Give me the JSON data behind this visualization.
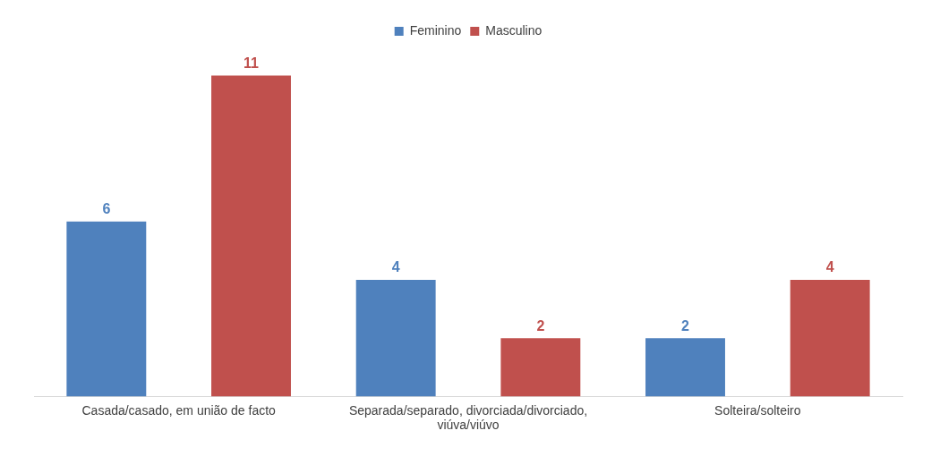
{
  "chart_data": {
    "type": "bar",
    "categories": [
      "Casada/casado, em união de facto",
      "Separada/separado, divorciada/divorciado, viúva/viúvo",
      "Solteira/solteiro"
    ],
    "series": [
      {
        "name": "Feminino",
        "color": "#4f81bd",
        "values": [
          6,
          4,
          2
        ]
      },
      {
        "name": "Masculino",
        "color": "#c0504d",
        "values": [
          11,
          2,
          4
        ]
      }
    ],
    "data_labels": true,
    "legend": "top",
    "grid": false,
    "tick_labels": "x"
  }
}
